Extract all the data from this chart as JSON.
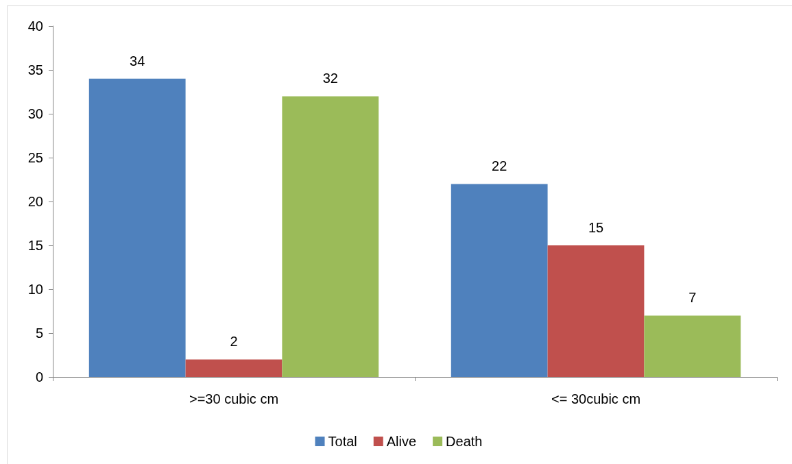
{
  "chart_data": {
    "type": "bar",
    "categories": [
      ">=30 cubic cm",
      "<= 30cubic cm"
    ],
    "series": [
      {
        "name": "Total",
        "color": "#4f81bd",
        "values": [
          34,
          22
        ]
      },
      {
        "name": "Alive",
        "color": "#c0504d",
        "values": [
          2,
          15
        ]
      },
      {
        "name": "Death",
        "color": "#9bbb59",
        "values": [
          32,
          7
        ]
      }
    ],
    "ylim": [
      0,
      40
    ],
    "yticks": [
      0,
      5,
      10,
      15,
      20,
      25,
      30,
      35,
      40
    ],
    "grid": false,
    "legend": "bottom",
    "data_labels": true
  }
}
